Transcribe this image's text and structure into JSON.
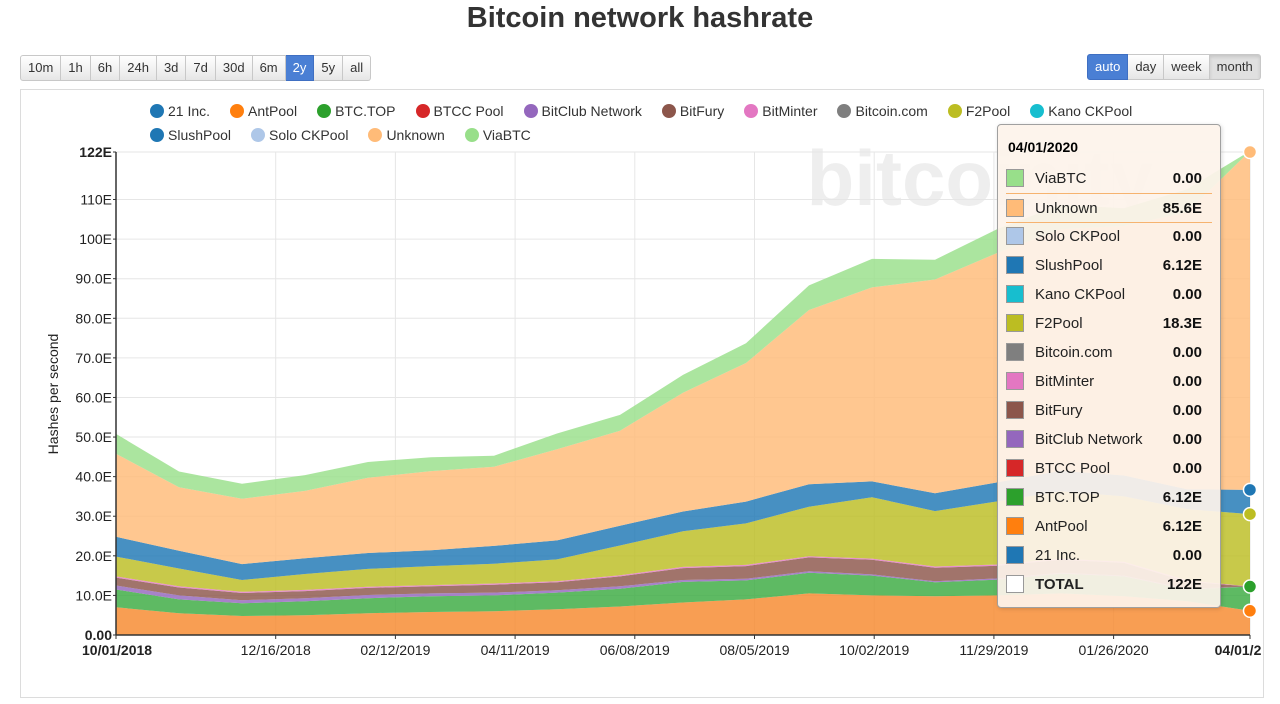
{
  "title": "Bitcoin network hashrate",
  "range_buttons": [
    "10m",
    "1h",
    "6h",
    "24h",
    "3d",
    "7d",
    "30d",
    "6m",
    "2y",
    "5y",
    "all"
  ],
  "range_active": "2y",
  "granularity_buttons": [
    "auto",
    "day",
    "week",
    "month"
  ],
  "granularity_active": "auto",
  "granularity_pressed": "month",
  "watermark": "bitcoinity",
  "chart_data": {
    "type": "area",
    "stacked": true,
    "ylabel": "Hashes per second",
    "xlabel": "",
    "ylim": [
      0,
      122
    ],
    "y_ticks": [
      "0.00",
      "10.0E",
      "20.0E",
      "30.0E",
      "40.0E",
      "50.0E",
      "60.0E",
      "70.0E",
      "80.0E",
      "90.0E",
      "100E",
      "110E",
      "122E"
    ],
    "x_tick_labels": [
      "10/01/2018",
      "12/16/2018",
      "02/12/2019",
      "04/11/2019",
      "06/08/2019",
      "08/05/2019",
      "10/02/2019",
      "11/29/2019",
      "01/26/2020",
      "04/01/2"
    ],
    "x": [
      "2018-10",
      "2018-11",
      "2018-12",
      "2019-01",
      "2019-02",
      "2019-03",
      "2019-04",
      "2019-05",
      "2019-06",
      "2019-07",
      "2019-08",
      "2019-09",
      "2019-10",
      "2019-11",
      "2019-12",
      "2020-01",
      "2020-02",
      "2020-03",
      "2020-04"
    ],
    "grid": true,
    "legend_position": "top",
    "series": [
      {
        "name": "AntPool",
        "color": "#f7892d",
        "values": [
          7,
          5.5,
          4.8,
          5,
          5.5,
          5.8,
          6,
          6.5,
          7.2,
          8.2,
          9,
          10.5,
          10,
          9.8,
          10,
          10.5,
          9.8,
          8.5,
          6.12
        ]
      },
      {
        "name": "BTC.TOP",
        "color": "#3aab41",
        "values": [
          4.5,
          3.5,
          3.2,
          3.5,
          3.8,
          4,
          4,
          4.2,
          4.5,
          5.2,
          4.8,
          5.2,
          5,
          3.5,
          4,
          5,
          5,
          3,
          6.12
        ]
      },
      {
        "name": "BitClub Network",
        "color": "#9467bd",
        "values": [
          1,
          1,
          0.8,
          0.8,
          0.8,
          0.7,
          0.7,
          0.6,
          0.6,
          0.5,
          0.4,
          0.4,
          0.3,
          0.3,
          0.3,
          0.2,
          0.2,
          0.2,
          0
        ]
      },
      {
        "name": "BitFury",
        "color": "#8c564b",
        "values": [
          2,
          2,
          1.8,
          1.8,
          1.8,
          1.8,
          2,
          2,
          2.5,
          3,
          3.2,
          3.5,
          3.7,
          3.4,
          3.2,
          3.3,
          3.2,
          1.8,
          0
        ]
      },
      {
        "name": "BitMinter",
        "color": "#e377c2",
        "values": [
          0.3,
          0.3,
          0.3,
          0.3,
          0.3,
          0.3,
          0.3,
          0.3,
          0.3,
          0.3,
          0.3,
          0.3,
          0.3,
          0.3,
          0.3,
          0.3,
          0.3,
          0.3,
          0
        ]
      },
      {
        "name": "F2Pool",
        "color": "#bcbd22",
        "values": [
          5,
          4.5,
          3,
          4,
          4.5,
          4.8,
          5,
          5.5,
          7.5,
          9,
          10.5,
          12.5,
          15.5,
          14,
          16,
          17,
          16.5,
          18,
          18.3
        ]
      },
      {
        "name": "SlushPool",
        "color": "#1f77b4",
        "values": [
          5,
          4.5,
          4,
          4,
          4,
          4,
          4.5,
          4.8,
          5,
          5,
          5.5,
          5.7,
          4,
          4.5,
          4.8,
          5.2,
          5.3,
          5,
          6.12
        ]
      },
      {
        "name": "Unknown",
        "color": "#ffbb78",
        "values": [
          21,
          16,
          16.5,
          17,
          19,
          20,
          20,
          23,
          24,
          30,
          35,
          44,
          49,
          54,
          58,
          61,
          63,
          70,
          85.6
        ]
      },
      {
        "name": "ViaBTC",
        "color": "#98df8a",
        "values": [
          5,
          4,
          3.8,
          4,
          4,
          3.5,
          2.8,
          4,
          4,
          4.5,
          5,
          6.2,
          7.2,
          5,
          6,
          6.2,
          4.5,
          5.8,
          0
        ]
      }
    ],
    "tooltip": {
      "date": "04/01/2020",
      "rows": [
        {
          "name": "ViaBTC",
          "value": "0.00",
          "color": "#98df8a"
        },
        {
          "name": "Unknown",
          "value": "85.6E",
          "color": "#ffbb78",
          "highlight": true
        },
        {
          "name": "Solo CKPool",
          "value": "0.00",
          "color": "#aec7e8"
        },
        {
          "name": "SlushPool",
          "value": "6.12E",
          "color": "#1f77b4"
        },
        {
          "name": "Kano CKPool",
          "value": "0.00",
          "color": "#17becf"
        },
        {
          "name": "F2Pool",
          "value": "18.3E",
          "color": "#bcbd22"
        },
        {
          "name": "Bitcoin.com",
          "value": "0.00",
          "color": "#7f7f7f"
        },
        {
          "name": "BitMinter",
          "value": "0.00",
          "color": "#e377c2"
        },
        {
          "name": "BitFury",
          "value": "0.00",
          "color": "#8c564b"
        },
        {
          "name": "BitClub Network",
          "value": "0.00",
          "color": "#9467bd"
        },
        {
          "name": "BTCC Pool",
          "value": "0.00",
          "color": "#d62728"
        },
        {
          "name": "BTC.TOP",
          "value": "6.12E",
          "color": "#2ca02c"
        },
        {
          "name": "AntPool",
          "value": "6.12E",
          "color": "#ff7f0e"
        },
        {
          "name": "21 Inc.",
          "value": "0.00",
          "color": "#1f77b4"
        },
        {
          "name": "TOTAL",
          "value": "122E",
          "color": "#ffffff",
          "total": true
        }
      ]
    }
  },
  "legend": [
    [
      {
        "name": "21 Inc.",
        "color": "#1f77b4"
      },
      {
        "name": "AntPool",
        "color": "#ff7f0e"
      },
      {
        "name": "BTC.TOP",
        "color": "#2ca02c"
      },
      {
        "name": "BTCC Pool",
        "color": "#d62728"
      },
      {
        "name": "BitClub Network",
        "color": "#9467bd"
      },
      {
        "name": "BitFury",
        "color": "#8c564b"
      },
      {
        "name": "BitMinter",
        "color": "#e377c2"
      },
      {
        "name": "Bitcoin.com",
        "color": "#7f7f7f"
      },
      {
        "name": "F2Pool",
        "color": "#bcbd22"
      },
      {
        "name": "Kano CKPool",
        "color": "#17becf"
      }
    ],
    [
      {
        "name": "SlushPool",
        "color": "#1f77b4"
      },
      {
        "name": "Solo CKPool",
        "color": "#aec7e8"
      },
      {
        "name": "Unknown",
        "color": "#ffbb78"
      },
      {
        "name": "ViaBTC",
        "color": "#98df8a"
      }
    ]
  ]
}
